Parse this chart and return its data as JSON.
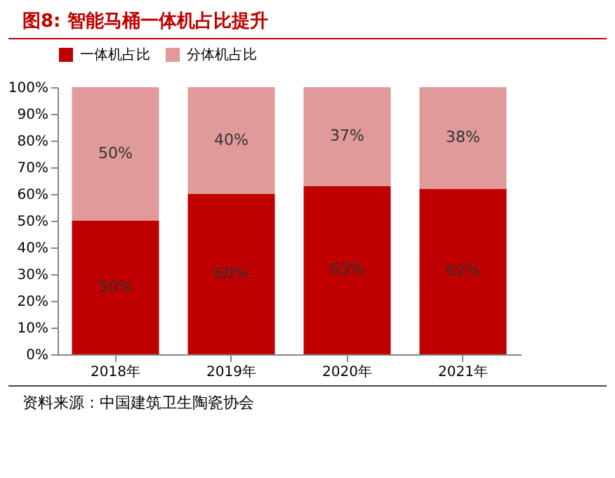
{
  "chart_data": {
    "type": "bar",
    "title": "图8:  智能马桶一体机占比提升",
    "stacked": true,
    "categories": [
      "2018年",
      "2019年",
      "2020年",
      "2021年"
    ],
    "series": [
      {
        "name": "一体机占比",
        "color": "#c00000",
        "values": [
          50,
          60,
          63,
          62
        ],
        "value_labels": [
          "50%",
          "60%",
          "63%",
          "62%"
        ]
      },
      {
        "name": "分体机占比",
        "color": "#e09a9a",
        "values": [
          50,
          40,
          37,
          38
        ],
        "value_labels": [
          "50%",
          "40%",
          "37%",
          "38%"
        ]
      }
    ],
    "ylim": [
      0,
      100
    ],
    "yticks": [
      {
        "value": 0,
        "label": "0%"
      },
      {
        "value": 10,
        "label": "10%"
      },
      {
        "value": 20,
        "label": "20%"
      },
      {
        "value": 30,
        "label": "30%"
      },
      {
        "value": 40,
        "label": "40%"
      },
      {
        "value": 50,
        "label": "50%"
      },
      {
        "value": 60,
        "label": "60%"
      },
      {
        "value": 70,
        "label": "70%"
      },
      {
        "value": 80,
        "label": "80%"
      },
      {
        "value": 90,
        "label": "90%"
      },
      {
        "value": 100,
        "label": "100%"
      }
    ],
    "legend": "top",
    "grid": false,
    "annotations": [
      "资料来源：中国建筑卫生陶瓷协会"
    ]
  }
}
